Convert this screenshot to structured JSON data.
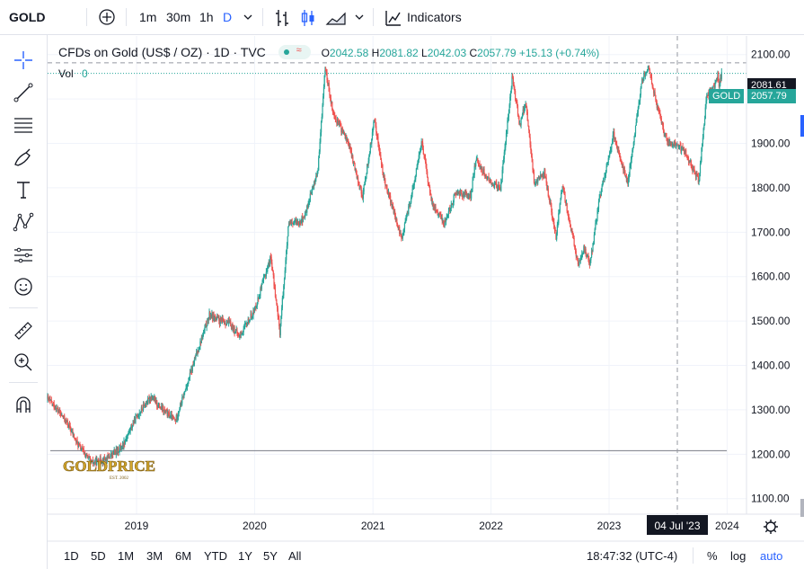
{
  "toolbar": {
    "symbol": "GOLD",
    "intervals": [
      "1m",
      "30m",
      "1h",
      "D"
    ],
    "indicators_label": "Indicators"
  },
  "legend": {
    "title": "CFDs on Gold (US$ / OZ) · 1D · TVC",
    "open_label": "O",
    "open": "2042.58",
    "high_label": "H",
    "high": "2081.82",
    "low_label": "L",
    "low": "2042.03",
    "close_label": "C",
    "close": "2057.79",
    "change": "+15.13 (+0.74%)",
    "vol_label": "Vol",
    "vol_value": "0"
  },
  "price_tags": {
    "crosshair": "2081.61",
    "symbol_label": "GOLD",
    "last_price": "2057.79"
  },
  "crosshair_date": "04 Jul '23",
  "watermark": {
    "brand": "GOLDPRICE",
    "tagline": "EST. 2002"
  },
  "bottom": {
    "ranges": [
      "1D",
      "5D",
      "1M",
      "3M",
      "6M",
      "YTD",
      "1Y",
      "5Y",
      "All"
    ],
    "clock": "18:47:32 (UTC-4)",
    "pct_label": "%",
    "log_label": "log",
    "auto_label": "auto"
  },
  "colors": {
    "up": "#26a69a",
    "down": "#ef5350",
    "accent": "#2962ff"
  },
  "chart_data": {
    "type": "candlestick",
    "title": "CFDs on Gold (US$ / OZ) · 1D · TVC",
    "x_ticks": [
      "2019",
      "2020",
      "2021",
      "2022",
      "2023",
      "2024"
    ],
    "y_ticks": [
      1100,
      1200,
      1300,
      1400,
      1500,
      1600,
      1700,
      1800,
      1900,
      2000,
      2100
    ],
    "ylim": [
      1065,
      2142
    ],
    "xlim": [
      "2018-04-01",
      "2024-03-01"
    ],
    "horizontal_line": 1208,
    "grid": true,
    "series": [
      {
        "points": [
          [
            "2018-04-01",
            1325
          ],
          [
            "2018-05-01",
            1300
          ],
          [
            "2018-06-01",
            1270
          ],
          [
            "2018-07-01",
            1225
          ],
          [
            "2018-08-15",
            1180
          ],
          [
            "2018-10-01",
            1190
          ],
          [
            "2018-11-15",
            1215
          ],
          [
            "2019-01-01",
            1285
          ],
          [
            "2019-02-15",
            1330
          ],
          [
            "2019-03-15",
            1305
          ],
          [
            "2019-05-01",
            1275
          ],
          [
            "2019-06-01",
            1345
          ],
          [
            "2019-07-01",
            1415
          ],
          [
            "2019-08-15",
            1515
          ],
          [
            "2019-09-15",
            1500
          ],
          [
            "2019-10-15",
            1495
          ],
          [
            "2019-11-15",
            1465
          ],
          [
            "2020-01-01",
            1525
          ],
          [
            "2020-02-20",
            1645
          ],
          [
            "2020-03-19",
            1475
          ],
          [
            "2020-04-15",
            1715
          ],
          [
            "2020-06-01",
            1730
          ],
          [
            "2020-07-15",
            1840
          ],
          [
            "2020-08-06",
            2070
          ],
          [
            "2020-09-01",
            1965
          ],
          [
            "2020-10-15",
            1905
          ],
          [
            "2020-11-30",
            1780
          ],
          [
            "2021-01-06",
            1955
          ],
          [
            "2021-02-01",
            1830
          ],
          [
            "2021-03-30",
            1685
          ],
          [
            "2021-04-30",
            1780
          ],
          [
            "2021-06-01",
            1905
          ],
          [
            "2021-06-30",
            1770
          ],
          [
            "2021-08-09",
            1720
          ],
          [
            "2021-09-15",
            1790
          ],
          [
            "2021-10-30",
            1780
          ],
          [
            "2021-11-15",
            1865
          ],
          [
            "2021-12-31",
            1810
          ],
          [
            "2022-01-31",
            1800
          ],
          [
            "2022-03-08",
            2052
          ],
          [
            "2022-03-31",
            1940
          ],
          [
            "2022-04-18",
            1995
          ],
          [
            "2022-05-15",
            1810
          ],
          [
            "2022-06-15",
            1835
          ],
          [
            "2022-07-21",
            1690
          ],
          [
            "2022-08-10",
            1805
          ],
          [
            "2022-09-28",
            1625
          ],
          [
            "2022-10-15",
            1665
          ],
          [
            "2022-11-03",
            1625
          ],
          [
            "2022-11-30",
            1765
          ],
          [
            "2023-01-15",
            1920
          ],
          [
            "2023-02-28",
            1810
          ],
          [
            "2023-04-13",
            2045
          ],
          [
            "2023-05-04",
            2070
          ],
          [
            "2023-06-01",
            1975
          ],
          [
            "2023-06-29",
            1905
          ],
          [
            "2023-08-21",
            1885
          ],
          [
            "2023-10-05",
            1815
          ],
          [
            "2023-10-30",
            2005
          ],
          [
            "2023-11-30",
            2040
          ],
          [
            "2023-12-04",
            2065
          ],
          [
            "2023-12-06",
            2030
          ],
          [
            "2023-12-15",
            2057.79
          ]
        ]
      }
    ]
  }
}
